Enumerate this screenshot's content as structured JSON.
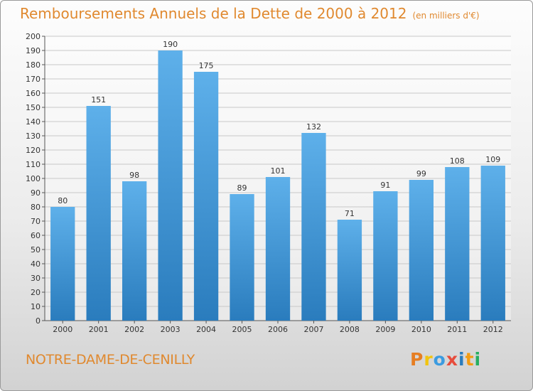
{
  "header": {
    "title": "Remboursements Annuels de la Dette de 2000 à 2012",
    "subtitle": "(en milliers d'€)"
  },
  "footer": {
    "commune": "NOTRE-DAME-DE-CENILLY",
    "logo_text": "Proxiti"
  },
  "colors": {
    "title": "#e0892f",
    "bar_top": "#5eb0ea",
    "bar_bottom": "#2a7cbd",
    "grid": "#c8c8c8",
    "logo_letters": [
      "#e67e22",
      "#f1c40f",
      "#3b9be0",
      "#e74c3c",
      "#2a7cbd",
      "#f39c12",
      "#27ae60"
    ]
  },
  "chart_data": {
    "type": "bar",
    "categories": [
      "2000",
      "2001",
      "2002",
      "2003",
      "2004",
      "2005",
      "2006",
      "2007",
      "2008",
      "2009",
      "2010",
      "2011",
      "2012"
    ],
    "values": [
      80,
      151,
      98,
      190,
      175,
      89,
      101,
      132,
      71,
      91,
      99,
      108,
      109
    ],
    "ylim": [
      0,
      200
    ],
    "ytick_step": 10,
    "grid": true,
    "data_labels": true
  }
}
